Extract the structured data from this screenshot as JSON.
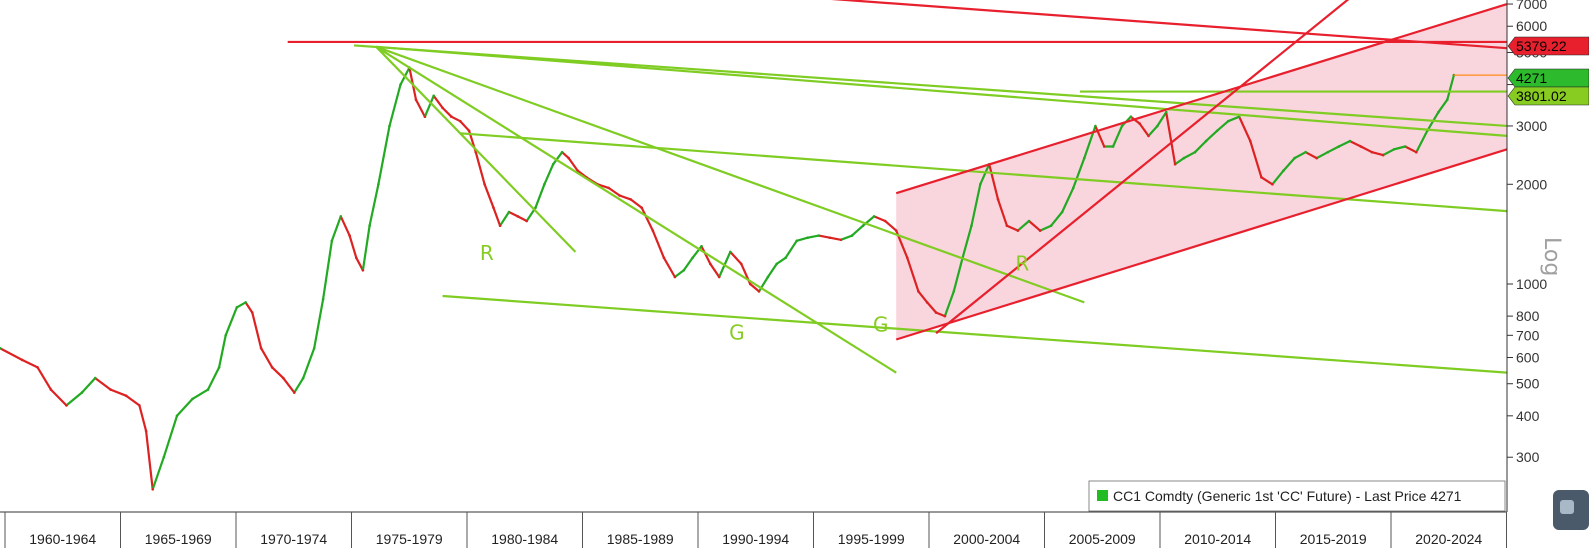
{
  "chart_data": {
    "type": "line",
    "title": "",
    "xlabel": "",
    "ylabel": "",
    "y_scale": "log",
    "y_scale_label": "Log",
    "xlim": [
      1958.5,
      2026.6
    ],
    "ylim": [
      205,
      7200
    ],
    "grid": false,
    "legend_placement": "bottom-right",
    "x_periods": [
      "1960-1964",
      "1965-1969",
      "1970-1974",
      "1975-1979",
      "1980-1984",
      "1985-1989",
      "1990-1994",
      "1995-1999",
      "2000-2004",
      "2005-2009",
      "2010-2014",
      "2015-2019",
      "2020-2024"
    ],
    "y_ticks": [
      300,
      400,
      500,
      600,
      700,
      800,
      1000,
      2000,
      3000,
      4000,
      5000,
      6000,
      7000
    ],
    "y_tick_labels": [
      "300",
      "400",
      "500",
      "600",
      "700",
      "800",
      "1000",
      "2000",
      "3000",
      "4000",
      "5000",
      "6000",
      "7000"
    ],
    "series": [
      {
        "name": "CC1 Comdty (Generic 1st 'CC' Future) - Last Price 4271",
        "color": "#22aa22",
        "color_down": "#dd2222",
        "x": [
          1958.5,
          1959.5,
          1960.2,
          1960.8,
          1961.5,
          1962.2,
          1962.8,
          1963.5,
          1964.2,
          1964.8,
          1965.1,
          1965.4,
          1965.9,
          1966.5,
          1967.2,
          1967.9,
          1968.4,
          1968.7,
          1969.2,
          1969.6,
          1969.9,
          1970.3,
          1970.8,
          1971.3,
          1971.8,
          1972.2,
          1972.7,
          1973.1,
          1973.5,
          1973.9,
          1974.3,
          1974.6,
          1974.9,
          1975.2,
          1975.6,
          1976.1,
          1976.6,
          1977.0,
          1977.3,
          1977.7,
          1978.1,
          1978.5,
          1978.9,
          1979.3,
          1979.7,
          1980.0,
          1980.4,
          1980.8,
          1981.1,
          1981.5,
          1981.9,
          1982.3,
          1982.7,
          1983.1,
          1983.5,
          1983.9,
          1984.2,
          1984.6,
          1985.0,
          1985.5,
          1986.0,
          1986.5,
          1987.0,
          1987.5,
          1988.0,
          1988.5,
          1989.0,
          1989.4,
          1989.8,
          1990.2,
          1990.6,
          1991.0,
          1991.5,
          1992.0,
          1992.4,
          1992.8,
          1993.2,
          1993.6,
          1994.0,
          1994.5,
          1995.0,
          1995.5,
          1996.0,
          1996.5,
          1997.0,
          1997.5,
          1998.0,
          1998.5,
          1999.0,
          1999.5,
          2000.0,
          2000.4,
          2000.8,
          2001.2,
          2001.6,
          2002.0,
          2002.4,
          2002.8,
          2003.2,
          2003.6,
          2004.0,
          2004.5,
          2005.0,
          2005.5,
          2006.0,
          2006.5,
          2007.0,
          2007.5,
          2008.0,
          2008.4,
          2008.8,
          2009.2,
          2009.6,
          2010.0,
          2010.4,
          2010.8,
          2011.2,
          2011.6,
          2012.0,
          2012.5,
          2013.0,
          2013.5,
          2014.0,
          2014.5,
          2015.0,
          2015.5,
          2016.0,
          2016.5,
          2017.0,
          2017.5,
          2018.0,
          2018.5,
          2019.0,
          2019.5,
          2020.0,
          2020.5,
          2021.0,
          2021.5,
          2022.0,
          2022.5,
          2023.0,
          2023.5,
          2023.9,
          2024.2
        ],
        "y": [
          640,
          590,
          560,
          480,
          430,
          470,
          520,
          480,
          460,
          430,
          360,
          240,
          300,
          400,
          450,
          480,
          560,
          700,
          850,
          880,
          820,
          640,
          560,
          520,
          470,
          520,
          640,
          900,
          1350,
          1600,
          1400,
          1200,
          1100,
          1500,
          2000,
          3000,
          4000,
          4500,
          3600,
          3200,
          3700,
          3400,
          3200,
          3100,
          2900,
          2500,
          2000,
          1700,
          1500,
          1650,
          1600,
          1550,
          1700,
          2000,
          2300,
          2500,
          2400,
          2200,
          2100,
          2000,
          1950,
          1850,
          1800,
          1700,
          1450,
          1200,
          1050,
          1100,
          1200,
          1300,
          1150,
          1050,
          1250,
          1150,
          1000,
          950,
          1050,
          1150,
          1200,
          1350,
          1380,
          1400,
          1380,
          1360,
          1400,
          1500,
          1600,
          1550,
          1450,
          1200,
          950,
          880,
          820,
          800,
          950,
          1200,
          1500,
          2000,
          2300,
          1800,
          1500,
          1450,
          1550,
          1450,
          1500,
          1650,
          1950,
          2400,
          3000,
          2600,
          2600,
          3000,
          3200,
          3050,
          2800,
          3000,
          3300,
          2300,
          2400,
          2500,
          2700,
          2900,
          3100,
          3200,
          2700,
          2100,
          2000,
          2200,
          2400,
          2500,
          2400,
          2500,
          2600,
          2700,
          2600,
          2500,
          2450,
          2550,
          2600,
          2500,
          2900,
          3300,
          3600,
          4271
        ]
      }
    ],
    "annotations": [
      {
        "text": "R",
        "x": 1980.5,
        "y": 1180,
        "color": "#88cc22"
      },
      {
        "text": "G",
        "x": 1991.8,
        "y": 680,
        "color": "#88cc22"
      },
      {
        "text": "G",
        "x": 1998.3,
        "y": 720,
        "color": "#88cc22"
      },
      {
        "text": "R",
        "x": 2004.7,
        "y": 1100,
        "color": "#88cc22"
      }
    ],
    "trendlines_green": [
      {
        "x1": 1974.5,
        "y1": 5250,
        "x2": 2026.6,
        "y2": 3000
      },
      {
        "x1": 1975.5,
        "y1": 5200,
        "x2": 2026.6,
        "y2": 2800
      },
      {
        "x1": 1975.5,
        "y1": 5200,
        "x2": 1984.5,
        "y2": 1250
      },
      {
        "x1": 1975.5,
        "y1": 5200,
        "x2": 2007.5,
        "y2": 880
      },
      {
        "x1": 1975.5,
        "y1": 5200,
        "x2": 1999.0,
        "y2": 540
      },
      {
        "x1": 1979.3,
        "y1": 2850,
        "x2": 2026.6,
        "y2": 1660
      },
      {
        "x1": 1978.5,
        "y1": 920,
        "x2": 2026.6,
        "y2": 540
      },
      {
        "x1": 2007.3,
        "y1": 3810,
        "x2": 2026.6,
        "y2": 3810
      }
    ],
    "trendlines_red": [
      {
        "x1": 1971.5,
        "y1": 5379.22,
        "x2": 2026.6,
        "y2": 5379.22
      },
      {
        "x1": 1995.5,
        "y1": 7300,
        "x2": 2026.6,
        "y2": 5150
      },
      {
        "x1": 1999.0,
        "y1": 1880,
        "x2": 2026.6,
        "y2": 7000
      },
      {
        "x1": 1999.0,
        "y1": 680,
        "x2": 2026.6,
        "y2": 2550
      },
      {
        "x1": 2000.8,
        "y1": 710,
        "x2": 2019.5,
        "y2": 7300
      }
    ],
    "channel_fill": {
      "color": "#f7c7d2",
      "x1": 1999.0,
      "x2": 2026.6,
      "upper": [
        1880,
        7000
      ],
      "lower": [
        680,
        2550
      ]
    },
    "price_tags": [
      {
        "label": "5379.22",
        "value": 5379.22,
        "bg": "#e8202e",
        "fg": "#ffffff"
      },
      {
        "label": "4271",
        "value": 4271,
        "bg": "#2dbb2d",
        "fg": "#000000"
      },
      {
        "label": "3801.02",
        "value": 3801.02,
        "bg": "#88cc22",
        "fg": "#000000"
      }
    ],
    "legend": {
      "text": "CC1 Comdty (Generic 1st 'CC' Future) - Last Price 4271",
      "swatch_color": "#22bb22"
    }
  }
}
